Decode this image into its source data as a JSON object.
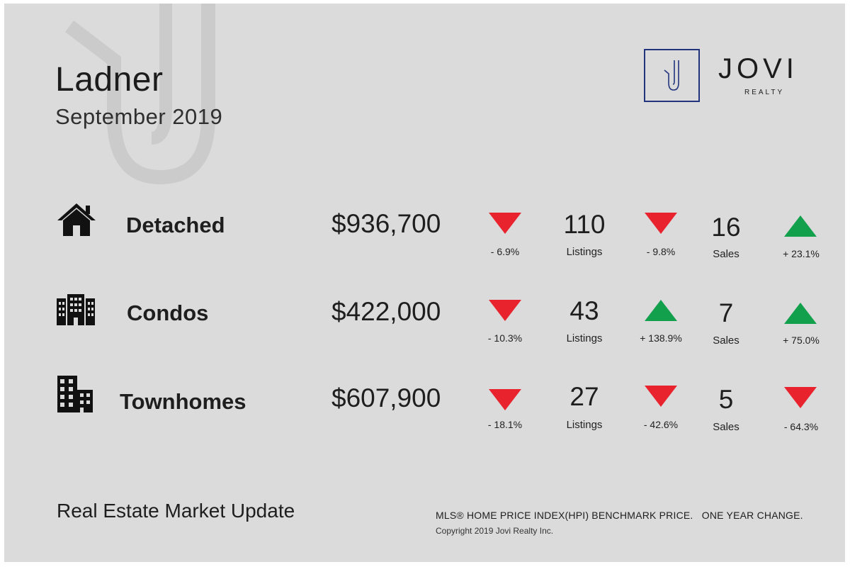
{
  "header": {
    "title": "Ladner",
    "subtitle": "September 2019"
  },
  "logo": {
    "name": "JOVI",
    "tagline": "REALTY",
    "color": "#22347d"
  },
  "colors": {
    "down": "#e8232e",
    "up": "#12a04c",
    "background": "#dbdbdb"
  },
  "rows": [
    {
      "icon": "house-icon",
      "type": "Detached",
      "price": "$936,700",
      "price_change": "- 6.9%",
      "price_direction": "down",
      "listings": "110",
      "listings_label": "Listings",
      "listings_change": "- 9.8%",
      "listings_direction": "down",
      "sales": "16",
      "sales_label": "Sales",
      "sales_change": "+ 23.1%",
      "sales_direction": "up"
    },
    {
      "icon": "apartment-building-icon",
      "type": "Condos",
      "price": "$422,000",
      "price_change": "- 10.3%",
      "price_direction": "down",
      "listings": "43",
      "listings_label": "Listings",
      "listings_change": "+ 138.9%",
      "listings_direction": "up",
      "sales": "7",
      "sales_label": "Sales",
      "sales_change": "+ 75.0%",
      "sales_direction": "up"
    },
    {
      "icon": "townhouse-building-icon",
      "type": "Townhomes",
      "price": "$607,900",
      "price_change": "- 18.1%",
      "price_direction": "down",
      "listings": "27",
      "listings_label": "Listings",
      "listings_change": "- 42.6%",
      "listings_direction": "down",
      "sales": "5",
      "sales_label": "Sales",
      "sales_change": "- 64.3%",
      "sales_direction": "down"
    }
  ],
  "footer": {
    "title": "Real Estate Market Update",
    "note": "MLS® HOME PRICE INDEX(HPI) BENCHMARK PRICE.   ONE YEAR CHANGE.",
    "copyright": "Copyright 2019 Jovi Realty Inc."
  }
}
